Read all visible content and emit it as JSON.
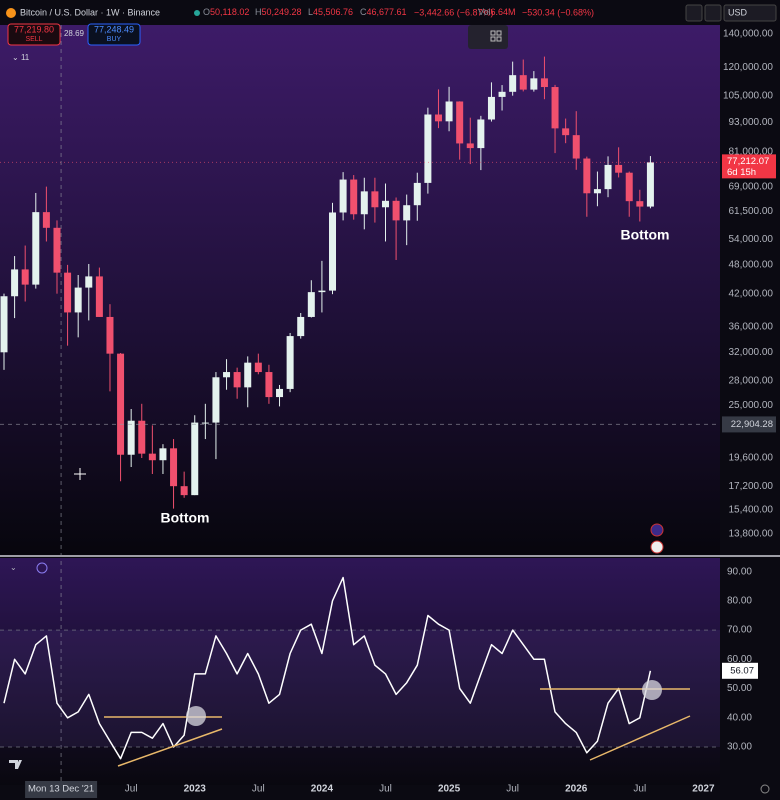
{
  "header": {
    "symbol": "Bitcoin / U.S. Dollar · 1W · Binance",
    "ohlc": [
      {
        "key": "O",
        "value": "50,118.02"
      },
      {
        "key": "H",
        "value": "50,249.28"
      },
      {
        "key": "L",
        "value": "45,506.76"
      },
      {
        "key": "C",
        "value": "46,677.61"
      }
    ],
    "change": "−3,442.66 (−6.87%)",
    "volume": {
      "key": "Vol",
      "value": "6.64M"
    },
    "volume_change": "−530.34 (−0.68%)",
    "sell": {
      "price": "77,219.80",
      "label": "SELL"
    },
    "spread": "28.69",
    "buy": {
      "price": "77,248.49",
      "label": "BUY"
    },
    "indicators_count": "11",
    "currency": "USD"
  },
  "chart_data": [
    {
      "type": "candlestick",
      "log": true,
      "up_color": "#e4f2ee",
      "down_color": "#f0506e",
      "categories": [
        "2021-07",
        "2021-08",
        "2021-09",
        "2021-10",
        "2021-11",
        "2021-12",
        "2022-01",
        "2022-02",
        "2022-03",
        "2022-04",
        "2022-05",
        "2022-06",
        "2022-07",
        "2022-08",
        "2022-09",
        "2022-10",
        "2022-11",
        "2022-12",
        "2023-01",
        "2023-02",
        "2023-03",
        "2023-04",
        "2023-05",
        "2023-06",
        "2023-07",
        "2023-08",
        "2023-09",
        "2023-10",
        "2023-11",
        "2023-12",
        "2024-01",
        "2024-02",
        "2024-03",
        "2024-04",
        "2024-05",
        "2024-06",
        "2024-07",
        "2024-08",
        "2024-09",
        "2024-10",
        "2024-11",
        "2024-12",
        "2025-01",
        "2025-02",
        "2025-03",
        "2025-04",
        "2025-05",
        "2025-06",
        "2025-07",
        "2025-08",
        "2025-09",
        "2025-10",
        "2025-11",
        "2025-12",
        "2026-01",
        "2026-02",
        "2026-03",
        "2026-04",
        "2026-05",
        "2026-06",
        "2026-07",
        "2026-08"
      ],
      "open": [
        32000,
        41500,
        47000,
        43800,
        61300,
        57000,
        46300,
        38500,
        43200,
        45500,
        37700,
        31800,
        19900,
        23300,
        20000,
        19400,
        20500,
        17200,
        16500,
        23100,
        23100,
        28500,
        29200,
        27200,
        30500,
        29200,
        26000,
        27000,
        34500,
        37700,
        42300,
        42600,
        61200,
        71300,
        60700,
        67500,
        62700,
        64600,
        59000,
        63300,
        70200,
        96400,
        93400,
        102400,
        84300,
        82500,
        94200,
        104600,
        107100,
        115700,
        108200,
        114000,
        109500,
        90400,
        87600,
        78600,
        66900,
        68200,
        76300,
        73600,
        64500,
        62900
      ],
      "high": [
        42000,
        50000,
        52500,
        67000,
        69000,
        59000,
        48000,
        45800,
        48200,
        47400,
        40000,
        31900,
        24600,
        25200,
        22800,
        20900,
        21400,
        18400,
        23900,
        25200,
        29200,
        31000,
        29800,
        31400,
        31800,
        30200,
        27500,
        35000,
        38400,
        44700,
        48900,
        64000,
        73800,
        72800,
        71900,
        71900,
        70000,
        65600,
        66500,
        73600,
        99500,
        108300,
        109600,
        102500,
        95000,
        95800,
        111900,
        110500,
        123200,
        124400,
        117900,
        126100,
        110600,
        94600,
        97900,
        79300,
        74000,
        79400,
        82800,
        74000,
        68000,
        79500
      ],
      "low": [
        29500,
        37500,
        40500,
        43000,
        53500,
        42000,
        33000,
        34300,
        37100,
        37700,
        26700,
        17600,
        18800,
        19600,
        18200,
        18200,
        15500,
        16300,
        16500,
        21400,
        19500,
        26900,
        25800,
        24800,
        28900,
        25200,
        24900,
        26600,
        34100,
        37600,
        38500,
        41900,
        59000,
        59200,
        56600,
        58400,
        53500,
        49100,
        52600,
        58900,
        66800,
        90500,
        89200,
        78200,
        76600,
        74500,
        93300,
        98200,
        105200,
        107300,
        107200,
        103500,
        80600,
        84400,
        74600,
        60000,
        63000,
        65700,
        72000,
        60000,
        58700,
        62400
      ],
      "close": [
        41500,
        47000,
        43800,
        61300,
        57000,
        46300,
        38500,
        43200,
        45500,
        37700,
        31800,
        19900,
        23300,
        20000,
        19400,
        20500,
        17200,
        16500,
        23100,
        23100,
        28500,
        29200,
        27200,
        30500,
        29200,
        26000,
        27000,
        34500,
        37700,
        42300,
        42600,
        61200,
        71300,
        60700,
        67500,
        62700,
        64600,
        59000,
        63300,
        70200,
        96400,
        93400,
        102400,
        84300,
        82500,
        94200,
        104600,
        107100,
        115700,
        108200,
        114000,
        109500,
        90400,
        87600,
        78600,
        66900,
        68200,
        76300,
        73600,
        64500,
        62900,
        77212.07
      ],
      "last_price_label": "77,212.07",
      "countdown": "6d 15h",
      "xlim": [
        "2021-07",
        "2027-02"
      ],
      "ylim": [
        12500,
        146000
      ],
      "yticks": [
        {
          "value": 13800,
          "label": "13,800.00"
        },
        {
          "value": 15400,
          "label": "15,400.00"
        },
        {
          "value": 17200,
          "label": "17,200.00"
        },
        {
          "value": 19600,
          "label": "19,600.00"
        },
        {
          "value": 25000,
          "label": "25,000.00"
        },
        {
          "value": 28000,
          "label": "28,000.00"
        },
        {
          "value": 32000,
          "label": "32,000.00"
        },
        {
          "value": 36000,
          "label": "36,000.00"
        },
        {
          "value": 42000,
          "label": "42,000.00"
        },
        {
          "value": 48000,
          "label": "48,000.00"
        },
        {
          "value": 54000,
          "label": "54,000.00"
        },
        {
          "value": 61500,
          "label": "61,500.00"
        },
        {
          "value": 69000,
          "label": "69,000.00"
        },
        {
          "value": 81000,
          "label": "81,000.00"
        },
        {
          "value": 93000,
          "label": "93,000.00"
        },
        {
          "value": 105000,
          "label": "105,000.00"
        },
        {
          "value": 120000,
          "label": "120,000.00"
        },
        {
          "value": 140000,
          "label": "140,000.00"
        }
      ],
      "crosshair": {
        "x": "2021-12-13",
        "x_label": "Mon 13 Dec '21",
        "y": {
          "value": 22904.28,
          "label": "22,904.28"
        }
      },
      "annotations": [
        "Bottom",
        "Bottom"
      ]
    },
    {
      "type": "line",
      "color": "#ffffff",
      "band": [
        30,
        70
      ],
      "values": [
        45,
        60,
        55,
        65,
        68,
        45,
        40,
        42,
        48,
        38,
        32,
        26,
        35,
        35,
        33,
        38,
        30,
        34,
        55,
        55,
        68,
        62,
        55,
        62,
        55,
        45,
        48,
        62,
        70,
        72,
        62,
        80,
        88,
        65,
        68,
        58,
        55,
        48,
        52,
        58,
        75,
        72,
        70,
        50,
        45,
        55,
        65,
        62,
        70,
        65,
        60,
        60,
        42,
        38,
        35,
        28,
        32,
        45,
        50,
        38,
        40,
        56.07
      ],
      "ylim": [
        17,
        95
      ],
      "yticks": [
        {
          "value": 30,
          "label": "30.00"
        },
        {
          "value": 40,
          "label": "40.00"
        },
        {
          "value": 50,
          "label": "50.00"
        },
        {
          "value": 60,
          "label": "60.00"
        },
        {
          "value": 70,
          "label": "70.00"
        },
        {
          "value": 80,
          "label": "80.00"
        },
        {
          "value": 90,
          "label": "90.00"
        }
      ],
      "xticks": [
        {
          "value": "2022-07",
          "label": "Jul"
        },
        {
          "value": "2023-01",
          "label": "2023"
        },
        {
          "value": "2023-07",
          "label": "Jul"
        },
        {
          "value": "2024-01",
          "label": "2024"
        },
        {
          "value": "2024-07",
          "label": "Jul"
        },
        {
          "value": "2025-01",
          "label": "2025"
        },
        {
          "value": "2025-07",
          "label": "Jul"
        },
        {
          "value": "2026-01",
          "label": "2026"
        },
        {
          "value": "2026-07",
          "label": "Jul"
        },
        {
          "value": "2027-01",
          "label": "2027"
        }
      ]
    }
  ]
}
